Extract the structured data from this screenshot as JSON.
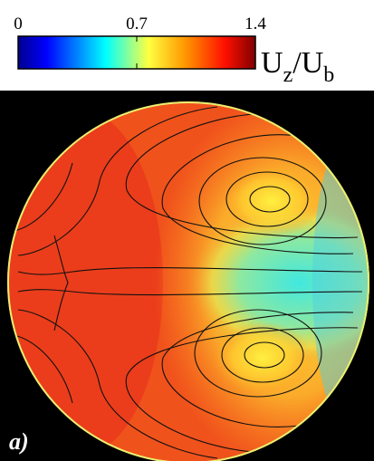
{
  "chart_data": {
    "type": "heatmap",
    "colorbar": {
      "lim": [
        0,
        1.4
      ],
      "ticks": [
        0,
        0.7,
        1.4
      ],
      "label": [
        "U",
        "z",
        "/U",
        "b"
      ]
    },
    "panel_label": "a)"
  }
}
